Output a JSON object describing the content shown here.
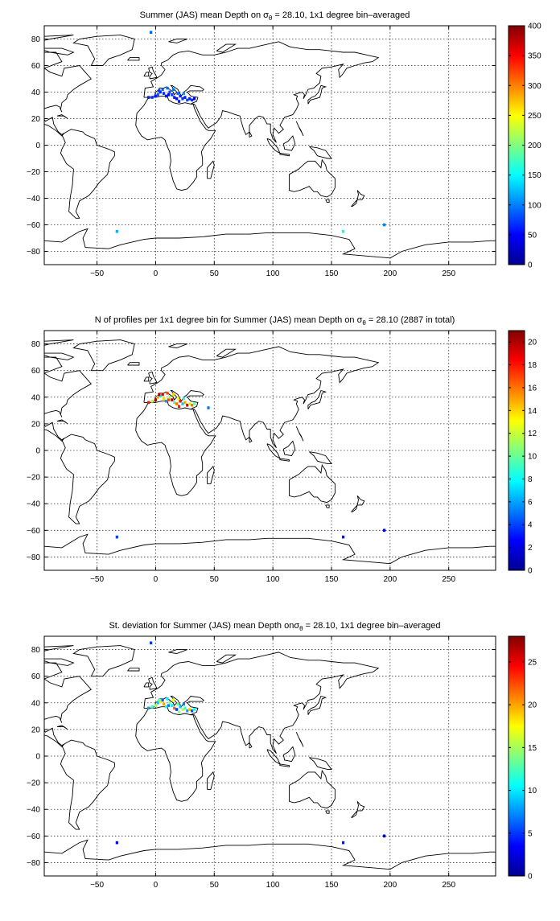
{
  "colors": {
    "axes": "#000000",
    "grid": "#000000",
    "coast": "#000000",
    "background": "#ffffff",
    "colormap": "jet"
  },
  "chart_data": [
    {
      "type": "heatmap",
      "title_parts": [
        "Summer (JAS) mean Depth on ",
        "σ",
        "θ",
        " = 28.10, 1x1 degree bin–averaged"
      ],
      "xlabel": "",
      "ylabel": "",
      "xlim": [
        -95,
        290
      ],
      "ylim": [
        -90,
        90
      ],
      "xticks": [
        -50,
        0,
        50,
        100,
        150,
        200,
        250
      ],
      "yticks": [
        80,
        60,
        40,
        20,
        0,
        -20,
        -40,
        -60,
        -80
      ],
      "grid": true,
      "colorbar": {
        "min": 0,
        "max": 400,
        "ticks": [
          400,
          350,
          300,
          250,
          200,
          150,
          100,
          50,
          0
        ]
      },
      "points": [
        {
          "lon": -6,
          "lat": 36,
          "value": 60
        },
        {
          "lon": -3,
          "lat": 36,
          "value": 70
        },
        {
          "lon": 0,
          "lat": 37,
          "value": 60
        },
        {
          "lon": 2,
          "lat": 38,
          "value": 80
        },
        {
          "lon": 4,
          "lat": 40,
          "value": 60
        },
        {
          "lon": 6,
          "lat": 42,
          "value": 90
        },
        {
          "lon": 7,
          "lat": 39,
          "value": 70
        },
        {
          "lon": 9,
          "lat": 37,
          "value": 60
        },
        {
          "lon": 11,
          "lat": 38,
          "value": 50
        },
        {
          "lon": 12,
          "lat": 40,
          "value": 80
        },
        {
          "lon": 14,
          "lat": 38,
          "value": 70
        },
        {
          "lon": 16,
          "lat": 36,
          "value": 60
        },
        {
          "lon": 18,
          "lat": 35,
          "value": 50
        },
        {
          "lon": 19,
          "lat": 39,
          "value": 90
        },
        {
          "lon": 21,
          "lat": 37,
          "value": 60
        },
        {
          "lon": 23,
          "lat": 35,
          "value": 70
        },
        {
          "lon": 25,
          "lat": 36,
          "value": 60
        },
        {
          "lon": 27,
          "lat": 34,
          "value": 80
        },
        {
          "lon": 29,
          "lat": 35,
          "value": 60
        },
        {
          "lon": 31,
          "lat": 34,
          "value": 70
        },
        {
          "lon": 33,
          "lat": 35,
          "value": 50
        },
        {
          "lon": 15,
          "lat": 42,
          "value": 100
        },
        {
          "lon": 10,
          "lat": 43,
          "value": 90
        },
        {
          "lon": 3,
          "lat": 41,
          "value": 70
        },
        {
          "lon": 24,
          "lat": 39,
          "value": 110
        },
        {
          "lon": 20,
          "lat": 33,
          "value": 60
        },
        {
          "lon": -33,
          "lat": -65,
          "value": 120
        },
        {
          "lon": 160,
          "lat": -65,
          "value": 150
        },
        {
          "lon": 195,
          "lat": -60,
          "value": 100
        },
        {
          "lon": -4,
          "lat": 85,
          "value": 90
        }
      ]
    },
    {
      "type": "heatmap",
      "title_parts": [
        "N of profiles per 1x1 degree bin for Summer (JAS) mean Depth on ",
        "σ",
        "θ",
        " = 28.10 (2887 in total)"
      ],
      "xlabel": "",
      "ylabel": "",
      "xlim": [
        -95,
        290
      ],
      "ylim": [
        -90,
        90
      ],
      "xticks": [
        -50,
        0,
        50,
        100,
        150,
        200,
        250
      ],
      "yticks": [
        80,
        60,
        40,
        20,
        0,
        -20,
        -40,
        -60,
        -80
      ],
      "grid": true,
      "colorbar": {
        "min": 0,
        "max": 21,
        "ticks": [
          20,
          18,
          16,
          14,
          12,
          10,
          8,
          6,
          4,
          2,
          0
        ]
      },
      "points": [
        {
          "lon": -6,
          "lat": 36,
          "value": 18
        },
        {
          "lon": -3,
          "lat": 37,
          "value": 12
        },
        {
          "lon": 0,
          "lat": 38,
          "value": 20
        },
        {
          "lon": 2,
          "lat": 40,
          "value": 15
        },
        {
          "lon": 4,
          "lat": 41,
          "value": 8
        },
        {
          "lon": 6,
          "lat": 42,
          "value": 19
        },
        {
          "lon": 7,
          "lat": 39,
          "value": 14
        },
        {
          "lon": 9,
          "lat": 37,
          "value": 6
        },
        {
          "lon": 11,
          "lat": 38,
          "value": 17
        },
        {
          "lon": 12,
          "lat": 40,
          "value": 11
        },
        {
          "lon": 14,
          "lat": 38,
          "value": 20
        },
        {
          "lon": 16,
          "lat": 36,
          "value": 9
        },
        {
          "lon": 18,
          "lat": 35,
          "value": 16
        },
        {
          "lon": 19,
          "lat": 39,
          "value": 13
        },
        {
          "lon": 21,
          "lat": 37,
          "value": 18
        },
        {
          "lon": 23,
          "lat": 35,
          "value": 7
        },
        {
          "lon": 25,
          "lat": 36,
          "value": 15
        },
        {
          "lon": 27,
          "lat": 34,
          "value": 19
        },
        {
          "lon": 29,
          "lat": 35,
          "value": 12
        },
        {
          "lon": 31,
          "lat": 34,
          "value": 16
        },
        {
          "lon": 33,
          "lat": 35,
          "value": 10
        },
        {
          "lon": 15,
          "lat": 42,
          "value": 14
        },
        {
          "lon": 10,
          "lat": 43,
          "value": 17
        },
        {
          "lon": 3,
          "lat": 42,
          "value": 20
        },
        {
          "lon": 24,
          "lat": 39,
          "value": 8
        },
        {
          "lon": 20,
          "lat": 33,
          "value": 18
        },
        {
          "lon": -33,
          "lat": -65,
          "value": 4
        },
        {
          "lon": 160,
          "lat": -65,
          "value": 3
        },
        {
          "lon": 195,
          "lat": -60,
          "value": 2
        },
        {
          "lon": 45,
          "lat": 32,
          "value": 5
        }
      ]
    },
    {
      "type": "heatmap",
      "title_parts": [
        "St. deviation for Summer (JAS) mean Depth on",
        "σ",
        "θ",
        " = 28.10, 1x1 degree bin–averaged"
      ],
      "xlabel": "",
      "ylabel": "",
      "xlim": [
        -95,
        290
      ],
      "ylim": [
        -90,
        90
      ],
      "xticks": [
        -50,
        0,
        50,
        100,
        150,
        200,
        250
      ],
      "yticks": [
        80,
        60,
        40,
        20,
        0,
        -20,
        -40,
        -60,
        -80
      ],
      "grid": true,
      "colorbar": {
        "min": 0,
        "max": 28,
        "ticks": [
          25,
          20,
          15,
          10,
          5,
          0
        ]
      },
      "points": [
        {
          "lon": -6,
          "lat": 36,
          "value": 8
        },
        {
          "lon": -3,
          "lat": 37,
          "value": 12
        },
        {
          "lon": 0,
          "lat": 38,
          "value": 15
        },
        {
          "lon": 2,
          "lat": 40,
          "value": 9
        },
        {
          "lon": 4,
          "lat": 41,
          "value": 18
        },
        {
          "lon": 6,
          "lat": 42,
          "value": 6
        },
        {
          "lon": 7,
          "lat": 39,
          "value": 20
        },
        {
          "lon": 9,
          "lat": 37,
          "value": 11
        },
        {
          "lon": 11,
          "lat": 38,
          "value": 7
        },
        {
          "lon": 12,
          "lat": 40,
          "value": 14
        },
        {
          "lon": 14,
          "lat": 38,
          "value": 10
        },
        {
          "lon": 16,
          "lat": 36,
          "value": 22
        },
        {
          "lon": 18,
          "lat": 35,
          "value": 5
        },
        {
          "lon": 19,
          "lat": 39,
          "value": 13
        },
        {
          "lon": 21,
          "lat": 37,
          "value": 9
        },
        {
          "lon": 23,
          "lat": 35,
          "value": 16
        },
        {
          "lon": 25,
          "lat": 36,
          "value": 12
        },
        {
          "lon": 27,
          "lat": 34,
          "value": 8
        },
        {
          "lon": 29,
          "lat": 35,
          "value": 19
        },
        {
          "lon": 31,
          "lat": 34,
          "value": 6
        },
        {
          "lon": 33,
          "lat": 35,
          "value": 11
        },
        {
          "lon": 15,
          "lat": 42,
          "value": 17
        },
        {
          "lon": 10,
          "lat": 43,
          "value": 10
        },
        {
          "lon": 3,
          "lat": 42,
          "value": 13
        },
        {
          "lon": 24,
          "lat": 39,
          "value": 7
        },
        {
          "lon": 20,
          "lat": 33,
          "value": 14
        },
        {
          "lon": -33,
          "lat": -65,
          "value": 3
        },
        {
          "lon": 160,
          "lat": -65,
          "value": 4
        },
        {
          "lon": 195,
          "lat": -60,
          "value": 2
        },
        {
          "lon": -4,
          "lat": 85,
          "value": 5
        }
      ]
    }
  ]
}
